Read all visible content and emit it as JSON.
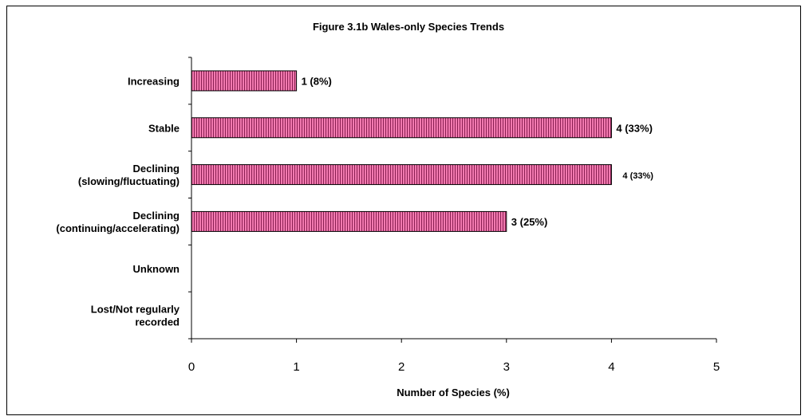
{
  "chart_data": {
    "type": "bar",
    "orientation": "horizontal",
    "title": "Figure 3.1b Wales-only Species Trends",
    "xlabel": "Number of Species (%)",
    "ylabel": "",
    "categories": [
      [
        "Increasing"
      ],
      [
        "Stable"
      ],
      [
        "Declining",
        "(slowing/fluctuating)"
      ],
      [
        "Declining",
        "(continuing/accelerating)"
      ],
      [
        "Unknown"
      ],
      [
        "Lost/Not regularly",
        "recorded"
      ]
    ],
    "values": [
      1,
      4,
      4,
      3,
      0,
      0
    ],
    "data_labels": [
      "1 (8%)",
      "4 (33%)",
      "4 (33%)",
      "3 (25%)",
      "",
      ""
    ],
    "xlim": [
      0,
      5
    ],
    "xticks": [
      "0",
      "1",
      "2",
      "3",
      "4",
      "5"
    ],
    "grid": false,
    "colors": {
      "bar_fill": "#f27ab0",
      "bar_stripe": "#8a1f52",
      "axis": "#000000"
    }
  }
}
